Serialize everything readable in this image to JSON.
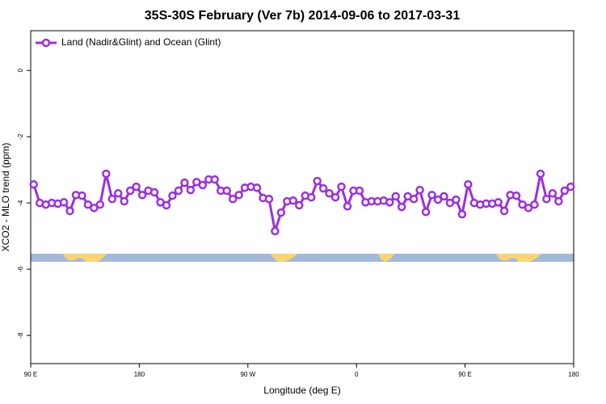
{
  "chart_data": {
    "type": "line",
    "title": "35S-30S February (Ver 7b)   2014-09-06 to 2017-03-31",
    "xlabel": "Longitude (deg E)",
    "ylabel": "XCO2 - MLO trend (ppm)",
    "x": [
      92.5,
      97.5,
      102.5,
      107.5,
      112.5,
      117.5,
      122.5,
      127.5,
      132.5,
      137.5,
      142.5,
      147.5,
      152.5,
      157.5,
      162.5,
      167.5,
      172.5,
      177.5,
      182.5,
      187.5,
      192.5,
      197.5,
      202.5,
      207.5,
      212.5,
      217.5,
      222.5,
      227.5,
      232.5,
      237.5,
      242.5,
      247.5,
      252.5,
      257.5,
      262.5,
      267.5,
      272.5,
      277.5,
      282.5,
      287.5,
      292.5,
      297.5,
      302.5,
      307.5,
      312.5,
      317.5,
      322.5,
      327.5,
      332.5,
      337.5,
      342.5,
      347.5,
      352.5,
      357.5,
      362.5,
      367.5,
      372.5,
      377.5,
      382.5,
      387.5,
      392.5,
      397.5,
      402.5,
      407.5,
      412.5,
      417.5,
      422.5,
      427.5,
      432.5,
      437.5,
      442.5,
      447.5,
      452.5,
      457.5,
      462.5,
      467.5,
      472.5,
      477.5,
      482.5,
      487.5,
      492.5,
      497.5,
      502.5,
      507.5,
      512.5,
      517.5,
      522.5,
      527.5,
      532.5,
      537.5
    ],
    "series": [
      {
        "name": "Land (Nadir&Glint) and Ocean (Glint)",
        "color": "#9b30e0",
        "values": [
          -3.44,
          -4.0,
          -4.05,
          -4.0,
          -4.02,
          -3.98,
          -4.24,
          -3.76,
          -3.78,
          -4.05,
          -4.15,
          -4.05,
          -3.12,
          -3.88,
          -3.71,
          -3.95,
          -3.63,
          -3.51,
          -3.76,
          -3.63,
          -3.68,
          -3.98,
          -4.07,
          -3.78,
          -3.63,
          -3.39,
          -3.61,
          -3.37,
          -3.46,
          -3.29,
          -3.29,
          -3.63,
          -3.63,
          -3.88,
          -3.76,
          -3.54,
          -3.51,
          -3.54,
          -3.85,
          -3.88,
          -4.85,
          -4.29,
          -3.95,
          -3.93,
          -4.07,
          -3.78,
          -3.83,
          -3.34,
          -3.56,
          -3.71,
          -3.83,
          -3.51,
          -4.1,
          -3.63,
          -3.63,
          -3.98,
          -3.95,
          -3.95,
          -3.93,
          -3.98,
          -3.8,
          -4.12,
          -3.8,
          -3.88,
          -3.61,
          -4.27,
          -3.76,
          -3.9,
          -3.8,
          -4.0,
          -3.9,
          -4.34,
          -3.44,
          -4.0,
          -4.05,
          -4.02,
          -4.02,
          -3.98,
          -4.24,
          -3.76,
          -3.78,
          -4.05,
          -4.15,
          -4.05,
          -3.12,
          -3.88,
          -3.71,
          -3.95,
          -3.63,
          -3.51
        ]
      }
    ],
    "xlim": [
      90,
      540
    ],
    "xticks": [
      {
        "value": 90,
        "label": "90 E"
      },
      180,
      {
        "value": 270,
        "label": "90 W"
      },
      {
        "value": 360,
        "label": "0"
      },
      {
        "value": 450,
        "label": "90 E"
      },
      {
        "value": 540,
        "label": "180"
      }
    ],
    "ylim": [
      -8.85,
      1.2
    ],
    "yticks": [
      0,
      -2,
      -4,
      -6,
      -8
    ],
    "legend": "top-left"
  }
}
